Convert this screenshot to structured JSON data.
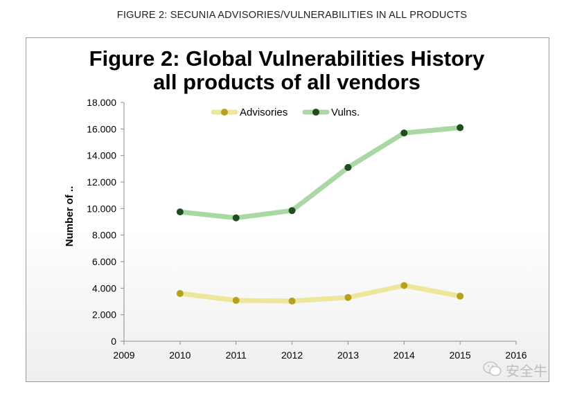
{
  "caption": "FIGURE 2: SECUNIA ADVISORIES/VULNERABILITIES IN ALL PRODUCTS",
  "watermark": "安全牛",
  "colors": {
    "advisories_line": "#ede79b",
    "advisories_marker": "#b5a21c",
    "vulns_line": "#a9d8a4",
    "vulns_marker": "#1f4d1f",
    "axis": "#8c8c8c"
  },
  "chart_data": {
    "type": "line",
    "title_lines": [
      "Figure 2: Global Vulnerabilities History",
      "all products of all vendors"
    ],
    "ylabel": "Number of ..",
    "xlabel": "",
    "x": [
      2010,
      2011,
      2012,
      2013,
      2014,
      2015
    ],
    "xlim": [
      2009,
      2016
    ],
    "ylim": [
      0,
      18000
    ],
    "x_ticks": [
      "2009",
      "2010",
      "2011",
      "2012",
      "2013",
      "2014",
      "2015",
      "2016"
    ],
    "y_ticks": [
      "0",
      "2.000",
      "4.000",
      "6.000",
      "8.000",
      "10.000",
      "12.000",
      "14.000",
      "16.000",
      "18.000"
    ],
    "legend_position": "top-center",
    "grid": false,
    "series": [
      {
        "name": "Advisories",
        "values": [
          3600,
          3080,
          3030,
          3300,
          4200,
          3400
        ]
      },
      {
        "name": "Vulns.",
        "values": [
          9750,
          9300,
          9850,
          13100,
          15700,
          16100
        ]
      }
    ]
  }
}
